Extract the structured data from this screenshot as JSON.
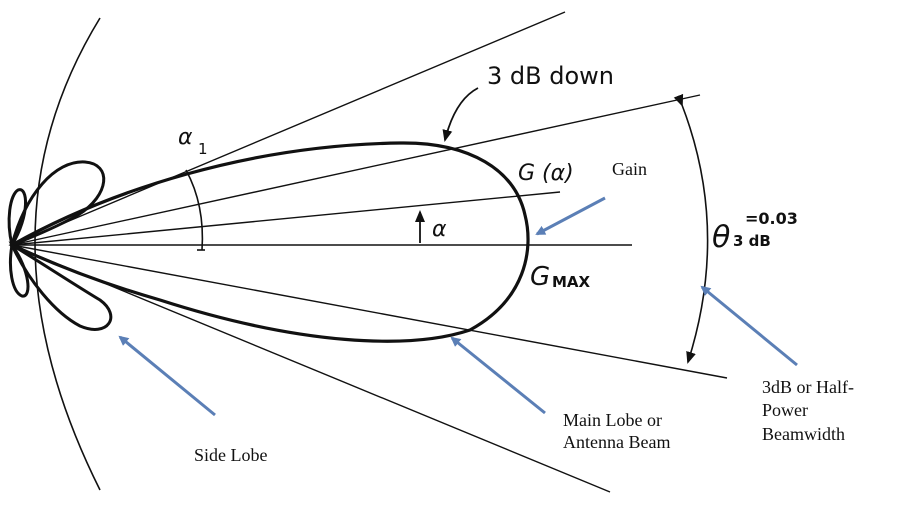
{
  "diagram": {
    "labels": {
      "three_db_down": "3 dB down",
      "g_alpha": "G (α)",
      "alpha": "α",
      "alpha1_symbol": "α",
      "alpha1_sub": "1",
      "gmax_g": "G",
      "gmax_sub": "MAX",
      "theta_symbol": "θ",
      "theta_sub": "3 dB",
      "theta_sup": "=0.03"
    },
    "annotations": {
      "gain": "Gain",
      "side_lobe": "Side Lobe",
      "main_lobe_line1": "Main Lobe or",
      "main_lobe_line2": "Antenna Beam",
      "beamwidth_line1": "3dB or Half-",
      "beamwidth_line2": "Power",
      "beamwidth_line3": "Beamwidth"
    },
    "colors": {
      "ink": "#111111",
      "arrow": "#5b7fb6"
    }
  }
}
